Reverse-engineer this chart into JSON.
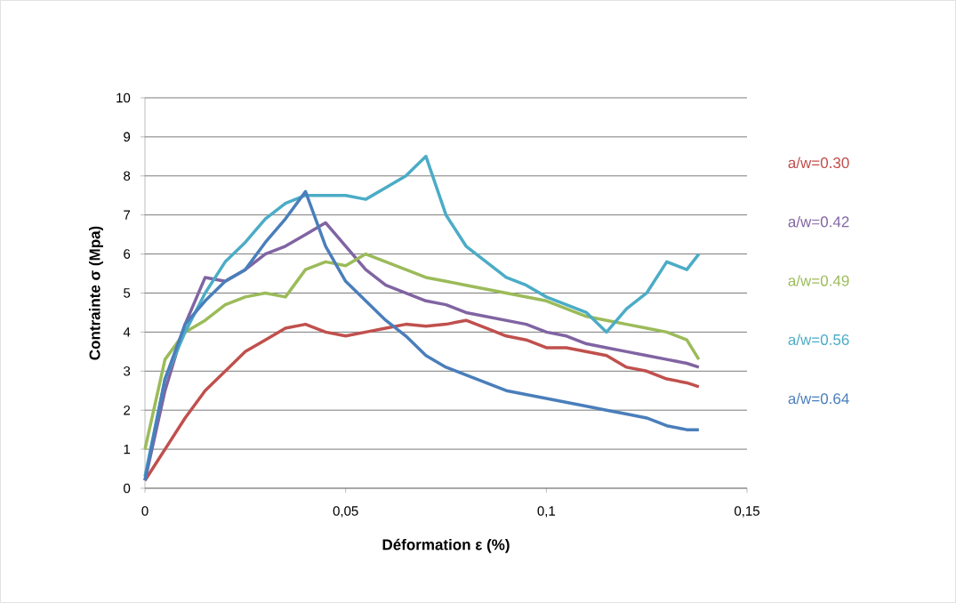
{
  "chart_data": {
    "type": "line",
    "xlabel": "Déformation  ε (%)",
    "ylabel": "Contrainte σ (Mpa)",
    "xlim": [
      0,
      0.15
    ],
    "ylim": [
      0,
      10
    ],
    "xticks": [
      0,
      {
        "value": 0.05,
        "label": "0,05"
      },
      {
        "value": 0.1,
        "label": "0,1"
      },
      {
        "value": 0.15,
        "label": "0,15"
      }
    ],
    "yticks": [
      0,
      1,
      2,
      3,
      4,
      5,
      6,
      7,
      8,
      9,
      10
    ],
    "grid": "y",
    "legend": "right",
    "marker": "none",
    "line_style": "solid",
    "x": [
      0,
      0.005,
      0.01,
      0.015,
      0.02,
      0.025,
      0.03,
      0.035,
      0.04,
      0.045,
      0.05,
      0.055,
      0.06,
      0.065,
      0.07,
      0.075,
      0.08,
      0.085,
      0.09,
      0.095,
      0.1,
      0.105,
      0.11,
      0.115,
      0.12,
      0.125,
      0.13,
      0.135,
      0.138
    ],
    "series": [
      {
        "name": "a/w=0.30",
        "color": "#c0504d",
        "values": [
          0.2,
          1.0,
          1.8,
          2.5,
          3.0,
          3.5,
          3.8,
          4.1,
          4.2,
          4.0,
          3.9,
          4.0,
          4.1,
          4.2,
          4.15,
          4.2,
          4.3,
          4.1,
          3.9,
          3.8,
          3.6,
          3.6,
          3.5,
          3.4,
          3.1,
          3.0,
          2.8,
          2.7,
          2.6
        ]
      },
      {
        "name": "a/w=0.42",
        "color": "#8064a2",
        "values": [
          0.2,
          2.5,
          4.2,
          5.4,
          5.3,
          5.6,
          6.0,
          6.2,
          6.5,
          6.8,
          6.2,
          5.6,
          5.2,
          5.0,
          4.8,
          4.7,
          4.5,
          4.4,
          4.3,
          4.2,
          4.0,
          3.9,
          3.7,
          3.6,
          3.5,
          3.4,
          3.3,
          3.2,
          3.1
        ]
      },
      {
        "name": "a/w=0.49",
        "color": "#9bbb59",
        "values": [
          1.0,
          3.3,
          4.0,
          4.3,
          4.7,
          4.9,
          5.0,
          4.9,
          5.6,
          5.8,
          5.7,
          6.0,
          5.8,
          5.6,
          5.4,
          5.3,
          5.2,
          5.1,
          5.0,
          4.9,
          4.8,
          4.6,
          4.4,
          4.3,
          4.2,
          4.1,
          4.0,
          3.8,
          3.3
        ]
      },
      {
        "name": "a/w=0.56",
        "color": "#4bacc6",
        "values": [
          0.3,
          2.8,
          4.0,
          5.0,
          5.8,
          6.3,
          6.9,
          7.3,
          7.5,
          7.5,
          7.5,
          7.4,
          7.7,
          8.0,
          8.5,
          7.0,
          6.2,
          5.8,
          5.4,
          5.2,
          4.9,
          4.7,
          4.5,
          4.0,
          4.6,
          5.0,
          5.8,
          5.6,
          6.0
        ]
      },
      {
        "name": "a/w=0.64",
        "color": "#4a7ebb",
        "values": [
          0.2,
          2.8,
          4.2,
          4.8,
          5.3,
          5.6,
          6.3,
          6.9,
          7.6,
          6.2,
          5.3,
          4.8,
          4.3,
          3.9,
          3.4,
          3.1,
          2.9,
          2.7,
          2.5,
          2.4,
          2.3,
          2.2,
          2.1,
          2.0,
          1.9,
          1.8,
          1.6,
          1.5,
          1.5
        ]
      }
    ]
  }
}
